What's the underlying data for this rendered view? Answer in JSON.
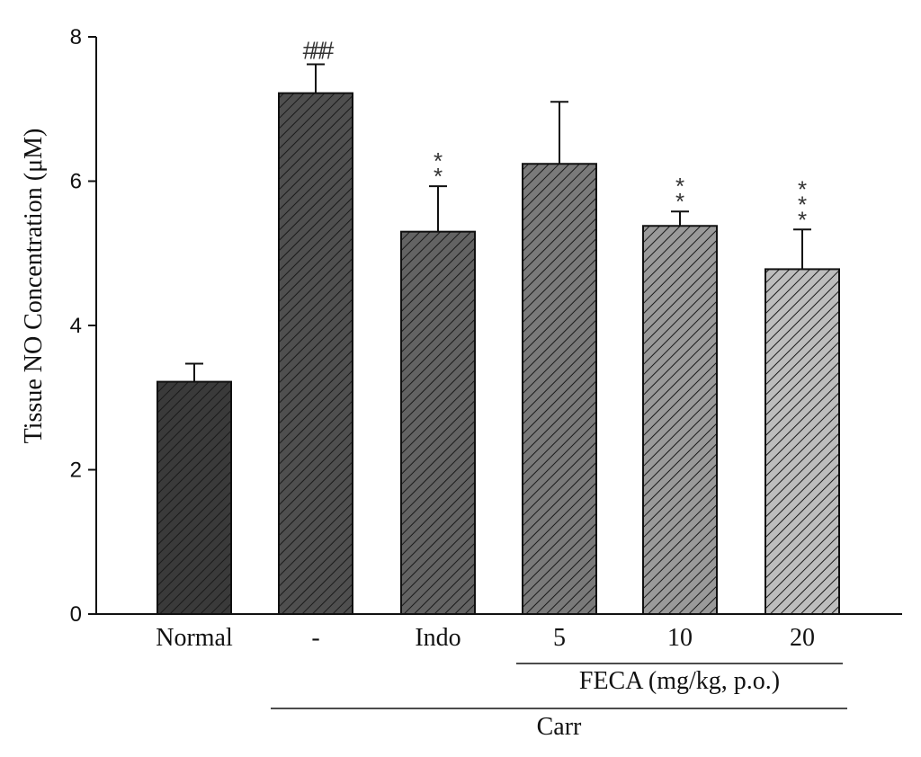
{
  "chart_data": {
    "type": "bar",
    "title": "",
    "xlabel": "",
    "ylabel": "Tissue NO Concentration (μM)",
    "ylim": [
      0,
      8
    ],
    "yticks": [
      "0",
      "2",
      "4",
      "6",
      "8"
    ],
    "categories": [
      "Normal",
      "-",
      "Indo",
      "5",
      "10",
      "20"
    ],
    "values": [
      3.22,
      7.22,
      5.3,
      6.24,
      5.38,
      4.78
    ],
    "errors": [
      0.25,
      0.4,
      0.63,
      0.86,
      0.2,
      0.55
    ],
    "bar_colors": [
      "#3a3a3a",
      "#4f4f4f",
      "#636363",
      "#7a7a7a",
      "#9a9a9a",
      "#bdbdbd"
    ],
    "significance": [
      "",
      "###",
      "**",
      "",
      "**",
      "***"
    ],
    "group_labels": [
      {
        "label": "FECA (mg/kg, p.o.)",
        "span": [
          3,
          5
        ]
      },
      {
        "label": "Carr",
        "span": [
          1,
          5
        ]
      }
    ]
  }
}
